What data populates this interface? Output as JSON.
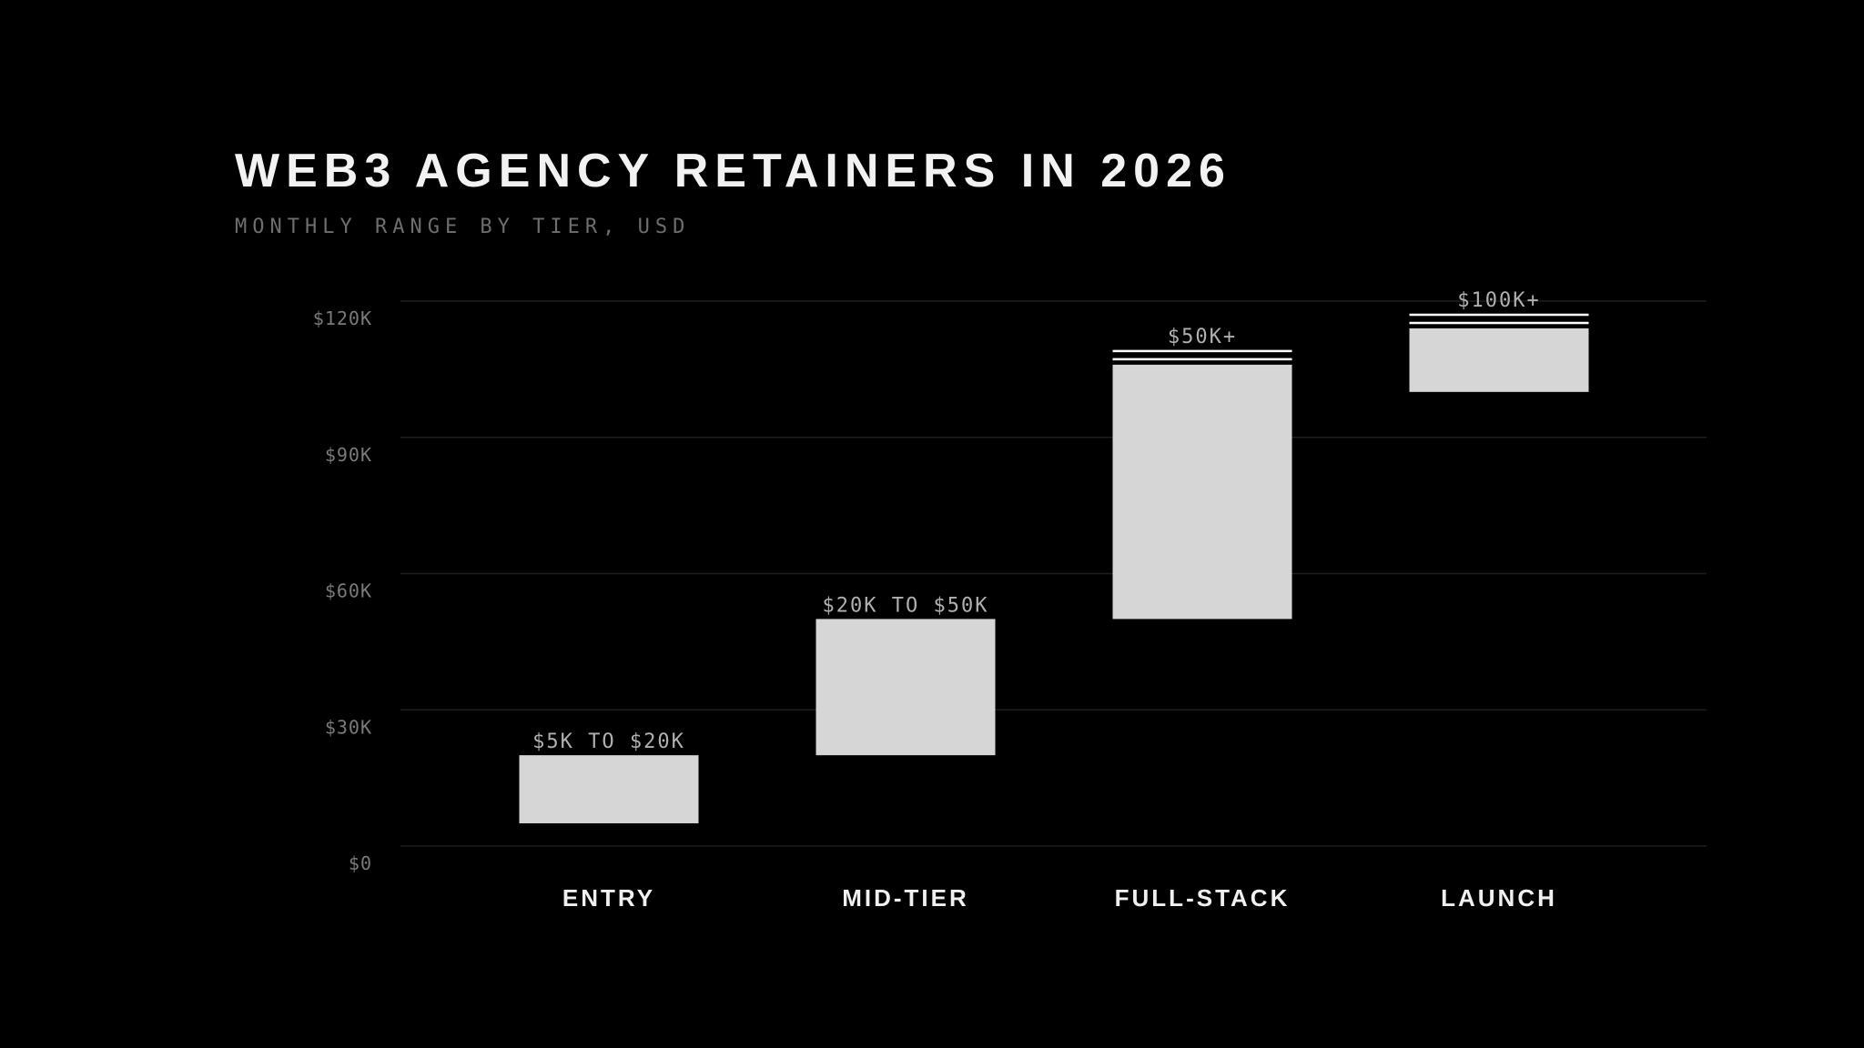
{
  "colors": {
    "background": "#000000",
    "bar": "#d6d6d6",
    "title": "#f2f2f2",
    "subtitle": "#6e6e6e",
    "tick": "#7a7a7a",
    "grid": "#1e1e1e",
    "range_label": "#b0b0b0",
    "category_label": "#f0f0f0",
    "open_marker": "#ffffff"
  },
  "chart_data": {
    "type": "bar",
    "title": "WEB3 AGENCY RETAINERS IN 2026",
    "subtitle": "MONTHLY RANGE BY TIER, USD",
    "categories": [
      "ENTRY",
      "MID-TIER",
      "FULL-STACK",
      "LAUNCH"
    ],
    "y_ticks": [
      {
        "value": 0,
        "label": "$0"
      },
      {
        "value": 30000,
        "label": "$30K"
      },
      {
        "value": 60000,
        "label": "$60K"
      },
      {
        "value": 90000,
        "label": "$90K"
      },
      {
        "value": 120000,
        "label": "$120K"
      }
    ],
    "ylim": [
      0,
      120000
    ],
    "grid": true,
    "series": [
      {
        "values": [
          {
            "category": "ENTRY",
            "low": 5000,
            "high": 20000,
            "label": "$5K TO $20K",
            "open_ended": false
          },
          {
            "category": "MID-TIER",
            "low": 20000,
            "high": 50000,
            "label": "$20K TO $50K",
            "open_ended": false
          },
          {
            "category": "FULL-STACK",
            "low": 50000,
            "high": 106000,
            "label": "$50K+",
            "open_ended": true
          },
          {
            "category": "LAUNCH",
            "low": 100000,
            "high": 114000,
            "label": "$100K+",
            "open_ended": true
          }
        ]
      }
    ]
  }
}
